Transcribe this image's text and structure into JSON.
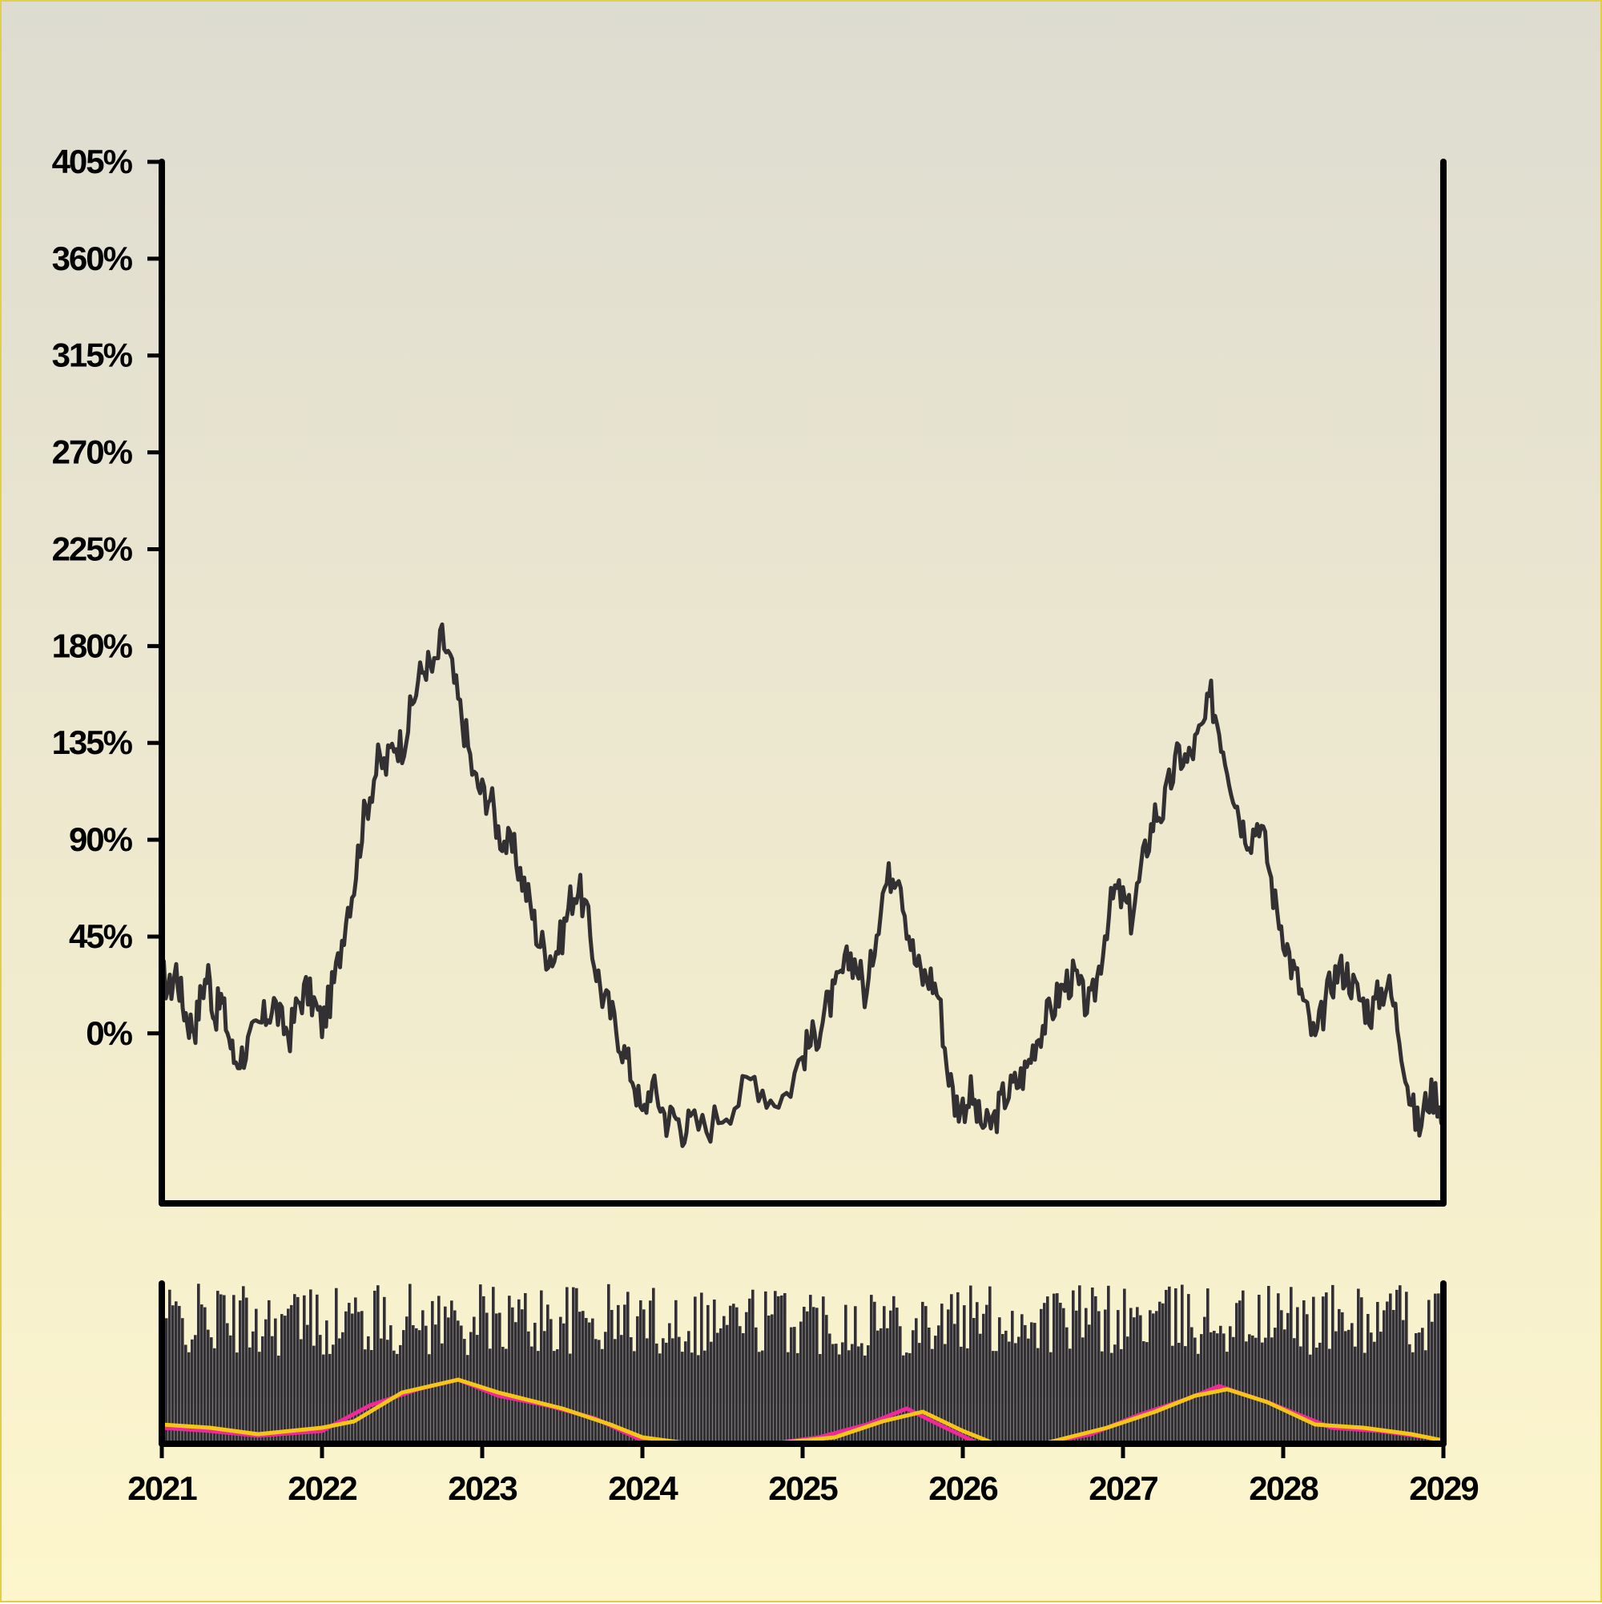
{
  "colors": {
    "axis": "#000000",
    "price_line": "#333033",
    "volume_bars": "#333033",
    "ma_fast": "#ee2a9a",
    "ma_slow": "#f5c518"
  },
  "chart_data": [
    {
      "type": "line",
      "title": "",
      "xlabel": "",
      "ylabel": "",
      "y_unit": "%",
      "grid": false,
      "legend": "none",
      "xlim": [
        2021,
        2029
      ],
      "ylim": [
        -79,
        405
      ],
      "yticks": [
        0,
        45,
        90,
        135,
        180,
        225,
        270,
        315,
        360,
        405
      ],
      "ytick_labels": [
        "0%",
        "45%",
        "90%",
        "135%",
        "180%",
        "225%",
        "270%",
        "315%",
        "360%",
        "405%"
      ],
      "series": [
        {
          "points": [
            [
              2021.0,
              28
            ],
            [
              2021.05,
              20
            ],
            [
              2021.09,
              30
            ],
            [
              2021.13,
              14
            ],
            [
              2021.17,
              5
            ],
            [
              2021.21,
              4
            ],
            [
              2021.25,
              20
            ],
            [
              2021.29,
              28
            ],
            [
              2021.33,
              8
            ],
            [
              2021.37,
              16
            ],
            [
              2021.41,
              2
            ],
            [
              2021.45,
              -12
            ],
            [
              2021.5,
              -10
            ],
            [
              2021.55,
              -4
            ],
            [
              2021.6,
              2
            ],
            [
              2021.65,
              8
            ],
            [
              2021.7,
              14
            ],
            [
              2021.75,
              4
            ],
            [
              2021.8,
              0
            ],
            [
              2021.85,
              14
            ],
            [
              2021.9,
              20
            ],
            [
              2021.95,
              14
            ],
            [
              2022.0,
              4
            ],
            [
              2022.05,
              16
            ],
            [
              2022.1,
              32
            ],
            [
              2022.15,
              56
            ],
            [
              2022.2,
              70
            ],
            [
              2022.25,
              96
            ],
            [
              2022.3,
              112
            ],
            [
              2022.35,
              126
            ],
            [
              2022.4,
              124
            ],
            [
              2022.45,
              136
            ],
            [
              2022.5,
              134
            ],
            [
              2022.55,
              148
            ],
            [
              2022.6,
              164
            ],
            [
              2022.65,
              172
            ],
            [
              2022.7,
              168
            ],
            [
              2022.75,
              184
            ],
            [
              2022.8,
              172
            ],
            [
              2022.85,
              154
            ],
            [
              2022.9,
              138
            ],
            [
              2022.95,
              118
            ],
            [
              2023.0,
              112
            ],
            [
              2023.05,
              110
            ],
            [
              2023.1,
              94
            ],
            [
              2023.15,
              88
            ],
            [
              2023.2,
              84
            ],
            [
              2023.25,
              72
            ],
            [
              2023.3,
              60
            ],
            [
              2023.35,
              44
            ],
            [
              2023.4,
              38
            ],
            [
              2023.45,
              36
            ],
            [
              2023.5,
              46
            ],
            [
              2023.55,
              62
            ],
            [
              2023.6,
              68
            ],
            [
              2023.65,
              56
            ],
            [
              2023.7,
              34
            ],
            [
              2023.75,
              18
            ],
            [
              2023.8,
              10
            ],
            [
              2023.85,
              0
            ],
            [
              2023.9,
              -12
            ],
            [
              2023.95,
              -22
            ],
            [
              2024.0,
              -40
            ],
            [
              2024.05,
              -24
            ],
            [
              2024.1,
              -30
            ],
            [
              2024.15,
              -40
            ],
            [
              2024.2,
              -38
            ],
            [
              2024.25,
              -44
            ],
            [
              2024.3,
              -42
            ],
            [
              2024.4,
              -44
            ],
            [
              2024.5,
              -36
            ],
            [
              2024.6,
              -30
            ],
            [
              2024.7,
              -20
            ],
            [
              2024.8,
              -30
            ],
            [
              2024.9,
              -28
            ],
            [
              2025.0,
              -10
            ],
            [
              2025.05,
              -4
            ],
            [
              2025.1,
              2
            ],
            [
              2025.15,
              12
            ],
            [
              2025.2,
              18
            ],
            [
              2025.25,
              28
            ],
            [
              2025.3,
              36
            ],
            [
              2025.35,
              30
            ],
            [
              2025.4,
              16
            ],
            [
              2025.45,
              44
            ],
            [
              2025.5,
              66
            ],
            [
              2025.55,
              74
            ],
            [
              2025.6,
              78
            ],
            [
              2025.65,
              52
            ],
            [
              2025.7,
              34
            ],
            [
              2025.75,
              26
            ],
            [
              2025.8,
              26
            ],
            [
              2025.85,
              18
            ],
            [
              2025.9,
              -14
            ],
            [
              2025.95,
              -32
            ],
            [
              2026.0,
              -34
            ],
            [
              2026.05,
              -28
            ],
            [
              2026.1,
              -40
            ],
            [
              2026.15,
              -44
            ],
            [
              2026.2,
              -40
            ],
            [
              2026.25,
              -30
            ],
            [
              2026.3,
              -26
            ],
            [
              2026.35,
              -22
            ],
            [
              2026.4,
              -16
            ],
            [
              2026.45,
              -4
            ],
            [
              2026.5,
              4
            ],
            [
              2026.55,
              10
            ],
            [
              2026.6,
              18
            ],
            [
              2026.65,
              24
            ],
            [
              2026.7,
              26
            ],
            [
              2026.75,
              16
            ],
            [
              2026.8,
              12
            ],
            [
              2026.85,
              30
            ],
            [
              2026.9,
              52
            ],
            [
              2026.95,
              66
            ],
            [
              2027.0,
              62
            ],
            [
              2027.05,
              54
            ],
            [
              2027.1,
              70
            ],
            [
              2027.15,
              88
            ],
            [
              2027.2,
              102
            ],
            [
              2027.25,
              104
            ],
            [
              2027.3,
              118
            ],
            [
              2027.35,
              130
            ],
            [
              2027.4,
              126
            ],
            [
              2027.45,
              134
            ],
            [
              2027.5,
              142
            ],
            [
              2027.55,
              156
            ],
            [
              2027.6,
              142
            ],
            [
              2027.65,
              126
            ],
            [
              2027.7,
              110
            ],
            [
              2027.75,
              96
            ],
            [
              2027.8,
              92
            ],
            [
              2027.85,
              100
            ],
            [
              2027.9,
              82
            ],
            [
              2027.95,
              60
            ],
            [
              2028.0,
              48
            ],
            [
              2028.05,
              32
            ],
            [
              2028.1,
              22
            ],
            [
              2028.15,
              8
            ],
            [
              2028.2,
              -4
            ],
            [
              2028.25,
              10
            ],
            [
              2028.3,
              24
            ],
            [
              2028.35,
              30
            ],
            [
              2028.4,
              28
            ],
            [
              2028.45,
              20
            ],
            [
              2028.5,
              14
            ],
            [
              2028.55,
              10
            ],
            [
              2028.6,
              18
            ],
            [
              2028.65,
              24
            ],
            [
              2028.7,
              10
            ],
            [
              2028.75,
              -10
            ],
            [
              2028.8,
              -34
            ],
            [
              2028.85,
              -44
            ],
            [
              2028.9,
              -30
            ],
            [
              2028.95,
              -28
            ],
            [
              2029.0,
              -36
            ]
          ]
        }
      ]
    },
    {
      "type": "bar",
      "title": "",
      "xlabel": "",
      "ylabel": "",
      "grid": false,
      "legend": "none",
      "xlim": [
        2021,
        2029
      ],
      "ylim": [
        0,
        100
      ],
      "xticks": [
        2021,
        2022,
        2023,
        2024,
        2025,
        2026,
        2027,
        2028,
        2029
      ],
      "xtick_labels": [
        "2021",
        "2022",
        "2023",
        "2024",
        "2025",
        "2026",
        "2027",
        "2028",
        "2029"
      ],
      "bar_count": 400,
      "volume_range": [
        18,
        100
      ],
      "series": [
        {
          "type": "line",
          "points": [
            [
              2021.0,
              10
            ],
            [
              2021.3,
              8
            ],
            [
              2021.6,
              5
            ],
            [
              2022.0,
              8
            ],
            [
              2022.3,
              24
            ],
            [
              2022.6,
              34
            ],
            [
              2022.85,
              40
            ],
            [
              2023.1,
              30
            ],
            [
              2023.4,
              24
            ],
            [
              2023.7,
              16
            ],
            [
              2024.0,
              2
            ],
            [
              2024.3,
              0
            ],
            [
              2024.8,
              0
            ],
            [
              2025.1,
              4
            ],
            [
              2025.4,
              12
            ],
            [
              2025.65,
              22
            ],
            [
              2025.85,
              12
            ],
            [
              2026.1,
              0
            ],
            [
              2026.5,
              0
            ],
            [
              2026.8,
              6
            ],
            [
              2027.1,
              18
            ],
            [
              2027.4,
              28
            ],
            [
              2027.6,
              36
            ],
            [
              2027.9,
              26
            ],
            [
              2028.1,
              18
            ],
            [
              2028.3,
              10
            ],
            [
              2028.6,
              8
            ],
            [
              2028.9,
              4
            ],
            [
              2029.0,
              0
            ]
          ]
        },
        {
          "type": "line",
          "points": [
            [
              2021.0,
              12
            ],
            [
              2021.3,
              10
            ],
            [
              2021.6,
              6
            ],
            [
              2022.0,
              10
            ],
            [
              2022.2,
              14
            ],
            [
              2022.5,
              32
            ],
            [
              2022.85,
              40
            ],
            [
              2023.1,
              32
            ],
            [
              2023.5,
              22
            ],
            [
              2023.8,
              12
            ],
            [
              2024.0,
              4
            ],
            [
              2024.3,
              0
            ],
            [
              2024.8,
              0
            ],
            [
              2025.2,
              4
            ],
            [
              2025.5,
              14
            ],
            [
              2025.75,
              20
            ],
            [
              2026.0,
              8
            ],
            [
              2026.2,
              0
            ],
            [
              2026.5,
              0
            ],
            [
              2026.9,
              10
            ],
            [
              2027.2,
              20
            ],
            [
              2027.45,
              30
            ],
            [
              2027.65,
              34
            ],
            [
              2027.9,
              26
            ],
            [
              2028.2,
              12
            ],
            [
              2028.5,
              10
            ],
            [
              2028.8,
              6
            ],
            [
              2029.0,
              2
            ]
          ]
        }
      ]
    }
  ]
}
